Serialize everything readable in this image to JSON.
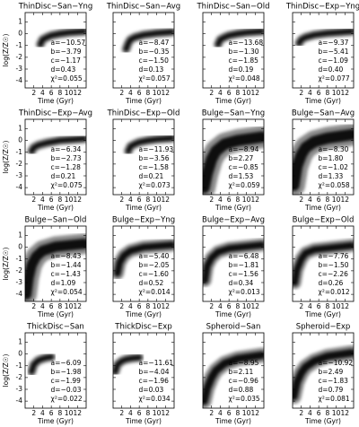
{
  "chart_data": [
    {
      "type": "line",
      "title": "ThinDisc−San−Yng",
      "xlabel": "Time (Gyr)",
      "ylabel": "log(Z/Z☉)",
      "ytick_labels": true,
      "xlim": [
        0,
        14
      ],
      "ylim": [
        -4.6,
        1.8
      ],
      "xticks": [
        2,
        4,
        6,
        8,
        10,
        12
      ],
      "yticks": [
        -4,
        -3,
        -2,
        -1,
        0,
        1
      ],
      "x": [
        3.5,
        4,
        5,
        6,
        8,
        10,
        13.5
      ],
      "values": [
        -0.9,
        -0.5,
        -0.3,
        -0.15,
        0,
        0.1,
        0.2
      ],
      "band_width": 0.25,
      "color": "#000000",
      "annotations": [
        "a=−10.57",
        "b=−3.79",
        "c=−1.17",
        "d=0.43",
        "χ²=0.055"
      ]
    },
    {
      "type": "line",
      "title": "ThinDisc−San−Avg",
      "xlabel": "Time (Gyr)",
      "ytick_labels": false,
      "xlim": [
        0,
        14
      ],
      "ylim": [
        -4.6,
        1.8
      ],
      "xticks": [
        2,
        4,
        6,
        8,
        10,
        12
      ],
      "yticks": [
        -4,
        -3,
        -2,
        -1,
        0,
        1
      ],
      "x": [
        3,
        3.5,
        4,
        5,
        7,
        10,
        13.5
      ],
      "values": [
        -1.3,
        -0.8,
        -0.5,
        -0.3,
        -0.1,
        0.05,
        0.15
      ],
      "band_width": 0.25,
      "color": "#000000",
      "annotations": [
        "a=−8.47",
        "b=−0.35",
        "c=−1.50",
        "d=0.13",
        "χ²=0.057"
      ]
    },
    {
      "type": "line",
      "title": "ThinDisc−San−Old",
      "xlabel": "Time (Gyr)",
      "ytick_labels": false,
      "xlim": [
        0,
        14
      ],
      "ylim": [
        -4.6,
        1.8
      ],
      "xticks": [
        2,
        4,
        6,
        8,
        10,
        12
      ],
      "yticks": [
        -4,
        -3,
        -2,
        -1,
        0,
        1
      ],
      "x": [
        3.5,
        4,
        5,
        6,
        8,
        10,
        13.5
      ],
      "values": [
        -0.9,
        -0.5,
        -0.3,
        -0.15,
        0,
        0.1,
        0.2
      ],
      "band_width": 0.25,
      "color": "#000000",
      "annotations": [
        "a=−13.68",
        "b=−1.30",
        "c=−1.85",
        "d=0.19",
        "χ²=0.048"
      ]
    },
    {
      "type": "line",
      "title": "ThinDisc−Exp−Yng",
      "xlabel": "Time (Gyr)",
      "ytick_labels": false,
      "xlim": [
        0,
        14
      ],
      "ylim": [
        -4.6,
        1.8
      ],
      "xticks": [
        2,
        4,
        6,
        8,
        10,
        12
      ],
      "yticks": [
        -4,
        -3,
        -2,
        -1,
        0,
        1
      ],
      "x": [
        1.5,
        2,
        3,
        5,
        8,
        13.5
      ],
      "values": [
        -0.8,
        -0.5,
        -0.3,
        -0.1,
        0.05,
        0.2
      ],
      "band_width": 0.25,
      "color": "#000000",
      "annotations": [
        "a=−9.37",
        "b=−5.41",
        "c=−1.09",
        "d=0.40",
        "χ²=0.077"
      ]
    },
    {
      "type": "line",
      "title": "ThinDisc−Exp−Avg",
      "xlabel": "Time (Gyr)",
      "ylabel": "log(Z/Z☉)",
      "ytick_labels": true,
      "xlim": [
        0,
        14
      ],
      "ylim": [
        -4.6,
        1.8
      ],
      "xticks": [
        2,
        4,
        6,
        8,
        10,
        12
      ],
      "yticks": [
        -4,
        -3,
        -2,
        -1,
        0,
        1
      ],
      "x": [
        1.5,
        2,
        3,
        5,
        8,
        13.5
      ],
      "values": [
        -0.9,
        -0.6,
        -0.4,
        -0.2,
        0,
        0.15
      ],
      "band_width": 0.25,
      "color": "#000000",
      "annotations": [
        "a=−6.34",
        "b=−2.73",
        "c=−1.28",
        "d=0.21",
        "χ²=0.075"
      ]
    },
    {
      "type": "line",
      "title": "ThinDisc−Exp−Old",
      "xlabel": "Time (Gyr)",
      "ytick_labels": false,
      "xlim": [
        0,
        14
      ],
      "ylim": [
        -4.6,
        1.8
      ],
      "xticks": [
        2,
        4,
        6,
        8,
        10,
        12
      ],
      "yticks": [
        -4,
        -3,
        -2,
        -1,
        0,
        1
      ],
      "x": [
        3.5,
        4,
        5,
        6,
        8,
        10,
        13.5
      ],
      "values": [
        -0.9,
        -0.5,
        -0.3,
        -0.15,
        0,
        0.1,
        0.2
      ],
      "band_width": 0.25,
      "color": "#000000",
      "annotations": [
        "a=−11.93",
        "b=−3.56",
        "c=−1.58",
        "d=0.21",
        "χ²=0.073"
      ]
    },
    {
      "type": "line",
      "title": "Bulge−San−Yng",
      "xlabel": "Time (Gyr)",
      "ytick_labels": false,
      "xlim": [
        0,
        14
      ],
      "ylim": [
        -4.6,
        1.8
      ],
      "xticks": [
        2,
        4,
        6,
        8,
        10,
        12
      ],
      "yticks": [
        -4,
        -3,
        -2,
        -1,
        0,
        1
      ],
      "x": [
        0.3,
        1,
        2,
        3,
        5,
        8,
        13.5
      ],
      "values": [
        -4,
        -2.8,
        -1.6,
        -0.9,
        -0.3,
        0,
        0.3
      ],
      "band_width": 0.6,
      "color": "#000000",
      "annotations": [
        "a=−8.94",
        "b=2.27",
        "c=−0.85",
        "d=1.53",
        "χ²=0.059"
      ]
    },
    {
      "type": "line",
      "title": "Bulge−San−Avg",
      "xlabel": "Time (Gyr)",
      "ytick_labels": false,
      "xlim": [
        0,
        14
      ],
      "ylim": [
        -4.6,
        1.8
      ],
      "xticks": [
        2,
        4,
        6,
        8,
        10,
        12
      ],
      "yticks": [
        -4,
        -3,
        -2,
        -1,
        0,
        1
      ],
      "x": [
        0.3,
        1,
        2,
        3,
        5,
        8,
        13.5
      ],
      "values": [
        -3.8,
        -2.2,
        -1.2,
        -0.6,
        -0.1,
        0.2,
        0.5
      ],
      "band_width": 0.6,
      "color": "#000000",
      "annotations": [
        "a=−8.30",
        "b=1.80",
        "c=−1.02",
        "d=1.33",
        "χ²=0.058"
      ]
    },
    {
      "type": "line",
      "title": "Bulge−San−Old",
      "xlabel": "Time (Gyr)",
      "ylabel": "log(Z/Z☉)",
      "ytick_labels": true,
      "xlim": [
        0,
        14
      ],
      "ylim": [
        -4.6,
        1.8
      ],
      "xticks": [
        2,
        4,
        6,
        8,
        10,
        12
      ],
      "yticks": [
        -4,
        -3,
        -2,
        -1,
        0,
        1
      ],
      "x": [
        0.3,
        0.8,
        1.5,
        2.5,
        4,
        7,
        13.5
      ],
      "values": [
        -4,
        -2.6,
        -1.5,
        -0.8,
        -0.3,
        0.05,
        0.3
      ],
      "band_width": 0.55,
      "color": "#000000",
      "annotations": [
        "a=−8.43",
        "b=−1.44",
        "c=−1.43",
        "d=1.09",
        "χ²=0.054"
      ]
    },
    {
      "type": "line",
      "title": "Bulge−Exp−Yng",
      "xlabel": "Time (Gyr)",
      "ytick_labels": false,
      "xlim": [
        0,
        14
      ],
      "ylim": [
        -4.6,
        1.8
      ],
      "xticks": [
        2,
        4,
        6,
        8,
        10,
        12
      ],
      "yticks": [
        -4,
        -3,
        -2,
        -1,
        0,
        1
      ],
      "x": [
        1,
        1.5,
        2.5,
        4,
        7,
        13.5
      ],
      "values": [
        -2.2,
        -1.3,
        -0.7,
        -0.3,
        0,
        0.2
      ],
      "band_width": 0.35,
      "color": "#000000",
      "annotations": [
        "a=−5.40",
        "b=−2.05",
        "c=−1.60",
        "d=0.52",
        "χ²=0.014"
      ]
    },
    {
      "type": "line",
      "title": "Bulge−Exp−Avg",
      "xlabel": "Time (Gyr)",
      "ytick_labels": false,
      "xlim": [
        0,
        14
      ],
      "ylim": [
        -4.6,
        1.8
      ],
      "xticks": [
        2,
        4,
        6,
        8,
        10,
        12
      ],
      "yticks": [
        -4,
        -3,
        -2,
        -1,
        0,
        1
      ],
      "x": [
        0.5,
        1,
        2,
        3.5,
        6,
        13.5
      ],
      "values": [
        -2.8,
        -1.6,
        -0.9,
        -0.4,
        -0.1,
        0.2
      ],
      "band_width": 0.35,
      "color": "#000000",
      "annotations": [
        "a=−6.48",
        "b=−1.81",
        "c=−1.56",
        "d=0.34",
        "χ²=0.013"
      ]
    },
    {
      "type": "line",
      "title": "Bulge−Exp−Old",
      "xlabel": "Time (Gyr)",
      "ytick_labels": false,
      "xlim": [
        0,
        14
      ],
      "ylim": [
        -4.6,
        1.8
      ],
      "xticks": [
        2,
        4,
        6,
        8,
        10,
        12
      ],
      "yticks": [
        -4,
        -3,
        -2,
        -1,
        0,
        1
      ],
      "x": [
        0.5,
        1,
        2,
        3,
        5,
        13.5
      ],
      "values": [
        -3,
        -1.9,
        -1,
        -0.5,
        -0.2,
        0.15
      ],
      "band_width": 0.35,
      "color": "#000000",
      "annotations": [
        "a=−7.76",
        "b=−1.50",
        "c=−2.26",
        "d=0.26",
        "χ²=0.012"
      ]
    },
    {
      "type": "line",
      "title": "ThickDisc−San",
      "xlabel": "Time (Gyr)",
      "ylabel": "log(Z/Z☉)",
      "ytick_labels": true,
      "xlim": [
        0,
        14
      ],
      "ylim": [
        -4.6,
        1.8
      ],
      "xticks": [
        2,
        4,
        6,
        8,
        10,
        12
      ],
      "yticks": [
        -4,
        -3,
        -2,
        -1,
        0,
        1
      ],
      "x": [
        1.5,
        2,
        3,
        4,
        5,
        6
      ],
      "values": [
        -1.5,
        -0.9,
        -0.55,
        -0.4,
        -0.3,
        -0.25
      ],
      "band_width": 0.25,
      "color": "#000000",
      "annotations": [
        "a=−6.09",
        "b=−1.98",
        "c=−1.99",
        "d=−0.03",
        "χ²=0.022"
      ]
    },
    {
      "type": "line",
      "title": "ThickDisc−Exp",
      "xlabel": "Time (Gyr)",
      "ytick_labels": false,
      "xlim": [
        0,
        14
      ],
      "ylim": [
        -4.6,
        1.8
      ],
      "xticks": [
        2,
        4,
        6,
        8,
        10,
        12
      ],
      "yticks": [
        -4,
        -3,
        -2,
        -1,
        0,
        1
      ],
      "x": [
        0.5,
        1,
        2,
        3,
        4.5,
        6
      ],
      "values": [
        -1.5,
        -0.9,
        -0.6,
        -0.45,
        -0.35,
        -0.3
      ],
      "band_width": 0.25,
      "color": "#000000",
      "annotations": [
        "a=−11.61",
        "b=−4.04",
        "c=−1.96",
        "d=0.03",
        "χ²=0.034"
      ]
    },
    {
      "type": "line",
      "title": "Spheroid−San",
      "xlabel": "Time (Gyr)",
      "ytick_labels": false,
      "xlim": [
        0,
        14
      ],
      "ylim": [
        -4.6,
        1.8
      ],
      "xticks": [
        2,
        4,
        6,
        8,
        10,
        12
      ],
      "yticks": [
        -4,
        -3,
        -2,
        -1,
        0,
        1
      ],
      "x": [
        0.3,
        1,
        2,
        3,
        5,
        8,
        13.5
      ],
      "values": [
        -4,
        -2.9,
        -2,
        -1.4,
        -0.8,
        -0.4,
        -0.1
      ],
      "band_width": 0.4,
      "color": "#000000",
      "annotations": [
        "a=−8.95",
        "b=2.11",
        "c=−0.96",
        "d=0.88",
        "χ²=0.035"
      ]
    },
    {
      "type": "line",
      "title": "Spheroid−Exp",
      "xlabel": "Time (Gyr)",
      "ytick_labels": false,
      "xlim": [
        0,
        14
      ],
      "ylim": [
        -4.6,
        1.8
      ],
      "xticks": [
        2,
        4,
        6,
        8,
        10,
        12
      ],
      "yticks": [
        -4,
        -3,
        -2,
        -1,
        0,
        1
      ],
      "x": [
        0.3,
        1,
        2,
        3,
        5,
        8,
        13.5
      ],
      "values": [
        -3.6,
        -2.4,
        -1.6,
        -1.1,
        -0.6,
        -0.2,
        0.1
      ],
      "band_width": 0.4,
      "color": "#000000",
      "annotations": [
        "a=−10.92",
        "b=2.49",
        "c=−1.83",
        "d=0.79",
        "χ²=0.081"
      ]
    }
  ]
}
